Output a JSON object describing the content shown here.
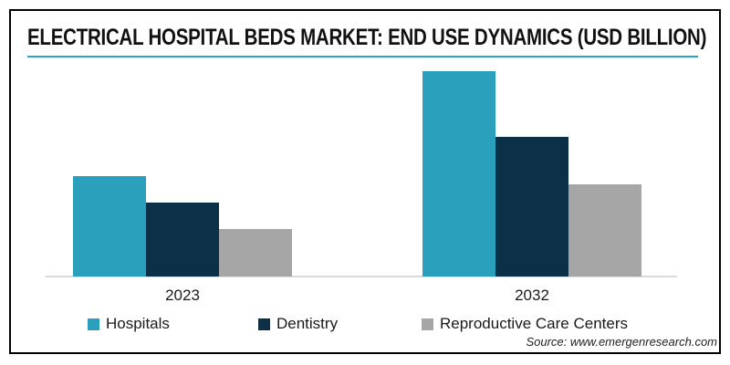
{
  "header": {
    "title": "ELECTRICAL HOSPITAL BEDS MARKET: END USE DYNAMICS (USD BILLION)",
    "underline_color": "#2AA4C4"
  },
  "footer": {
    "source": "Source: www.emergenresearch.com"
  },
  "colors": {
    "background": "#FFFFFF",
    "border": "#000000",
    "axis_line": "#D9D9D9",
    "text": "#1A1A1A"
  },
  "chart_data": {
    "type": "bar",
    "title": "ELECTRICAL HOSPITAL BEDS MARKET: END USE DYNAMICS (USD BILLION)",
    "unit": "USD Billion",
    "categories": [
      "2023",
      "2032"
    ],
    "series": [
      {
        "name": "Hospitals",
        "color": "#2BA0BC",
        "values": [
          49,
          100
        ]
      },
      {
        "name": "Dentistry",
        "color": "#0D3049",
        "values": [
          36,
          68
        ]
      },
      {
        "name": "Reproductive Care Centers",
        "color": "#A6A6A6",
        "values": [
          23,
          45
        ]
      }
    ],
    "ylim": [
      0,
      110
    ],
    "grid": false,
    "y_axis_shown": false,
    "legend_position": "bottom",
    "values_note": "No numeric axis or data labels are shown in the image; values are estimated relative units with the tallest bar (Hospitals 2032) = 100"
  }
}
